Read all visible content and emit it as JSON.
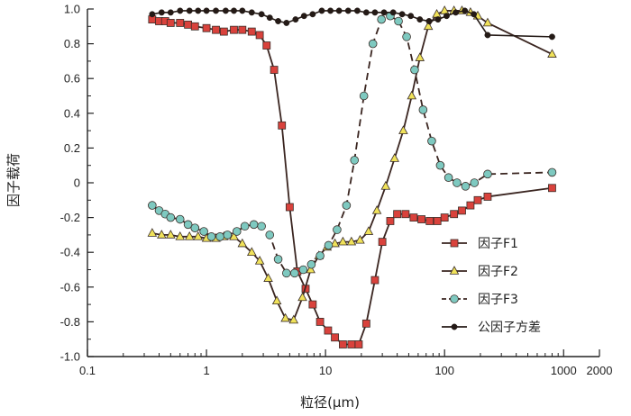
{
  "chart_data": {
    "type": "line",
    "title": "",
    "xlabel": "粒径(μm)",
    "ylabel": "因子载荷",
    "xscale": "log",
    "xlim": [
      0.1,
      2000
    ],
    "ylim": [
      -1.0,
      1.0
    ],
    "x_ticks": [
      0.1,
      1,
      10,
      100,
      1000,
      2000
    ],
    "x_tick_labels": [
      "0.1",
      "1",
      "10",
      "100",
      "1000",
      "2000"
    ],
    "y_ticks": [
      1.0,
      0.8,
      0.6,
      0.4,
      0.2,
      0,
      -0.2,
      -0.4,
      -0.6,
      -0.8,
      -1.0
    ],
    "y_tick_labels": [
      "1.0",
      "0.8",
      "0.6",
      "0.4",
      "0.2",
      "0",
      "-0.2",
      "-0.4",
      "-0.6",
      "-0.8",
      "-1.0"
    ],
    "grid": false,
    "legend_position": "lower-right",
    "series": [
      {
        "name": "因子F1",
        "color": "#d9423c",
        "line_color": "#3a2520",
        "marker": "square",
        "line_style": "solid",
        "x": [
          0.35,
          0.4,
          0.45,
          0.5,
          0.6,
          0.7,
          0.8,
          1.0,
          1.2,
          1.4,
          1.7,
          2.0,
          2.4,
          2.8,
          3.2,
          3.7,
          4.3,
          5.0,
          5.8,
          6.8,
          7.8,
          9.0,
          10.5,
          12,
          14,
          16.5,
          19,
          22,
          26,
          30,
          35,
          40,
          47,
          55,
          64,
          75,
          87,
          100,
          120,
          140,
          165,
          190,
          230,
          800
        ],
        "values": [
          0.94,
          0.93,
          0.93,
          0.92,
          0.92,
          0.91,
          0.9,
          0.89,
          0.88,
          0.87,
          0.88,
          0.88,
          0.87,
          0.85,
          0.79,
          0.65,
          0.33,
          -0.14,
          -0.51,
          -0.61,
          -0.7,
          -0.8,
          -0.85,
          -0.89,
          -0.93,
          -0.93,
          -0.93,
          -0.81,
          -0.56,
          -0.34,
          -0.22,
          -0.18,
          -0.18,
          -0.2,
          -0.21,
          -0.22,
          -0.22,
          -0.2,
          -0.18,
          -0.16,
          -0.13,
          -0.1,
          -0.08,
          -0.03
        ]
      },
      {
        "name": "因子F2",
        "color": "#f0e25a",
        "line_color": "#3a2520",
        "marker": "triangle",
        "line_style": "solid",
        "x": [
          0.35,
          0.42,
          0.5,
          0.6,
          0.72,
          0.85,
          1.0,
          1.2,
          1.4,
          1.7,
          2.0,
          2.4,
          2.8,
          3.3,
          3.9,
          4.6,
          5.4,
          6.4,
          7.5,
          8.8,
          10.3,
          12,
          14,
          16.5,
          19.5,
          23,
          27,
          32,
          38,
          45,
          53,
          62,
          73,
          86,
          100,
          120,
          140,
          165,
          190,
          230,
          800
        ],
        "values": [
          -0.29,
          -0.3,
          -0.3,
          -0.31,
          -0.31,
          -0.31,
          -0.32,
          -0.32,
          -0.31,
          -0.31,
          -0.35,
          -0.4,
          -0.45,
          -0.55,
          -0.68,
          -0.78,
          -0.79,
          -0.66,
          -0.5,
          -0.42,
          -0.37,
          -0.35,
          -0.34,
          -0.34,
          -0.33,
          -0.28,
          -0.16,
          -0.02,
          0.14,
          0.3,
          0.5,
          0.72,
          0.9,
          0.97,
          0.99,
          0.99,
          0.99,
          0.98,
          0.96,
          0.92,
          0.74
        ]
      },
      {
        "name": "因子F3",
        "color": "#7ec9c0",
        "line_color": "#3a2520",
        "marker": "circle",
        "line_style": "dashed",
        "x": [
          0.35,
          0.4,
          0.45,
          0.5,
          0.6,
          0.7,
          0.8,
          0.95,
          1.1,
          1.3,
          1.5,
          1.8,
          2.1,
          2.5,
          2.9,
          3.4,
          4.0,
          4.7,
          5.5,
          6.5,
          7.6,
          9.0,
          10.6,
          12.5,
          15,
          17.5,
          21,
          25,
          29.5,
          35,
          41,
          48,
          56,
          66,
          78,
          92,
          108,
          127,
          150,
          178,
          230,
          800
        ],
        "values": [
          -0.13,
          -0.16,
          -0.18,
          -0.2,
          -0.21,
          -0.24,
          -0.26,
          -0.28,
          -0.31,
          -0.31,
          -0.3,
          -0.28,
          -0.25,
          -0.24,
          -0.25,
          -0.3,
          -0.44,
          -0.52,
          -0.52,
          -0.5,
          -0.47,
          -0.42,
          -0.36,
          -0.27,
          -0.13,
          0.13,
          0.5,
          0.8,
          0.94,
          0.96,
          0.93,
          0.84,
          0.65,
          0.42,
          0.24,
          0.1,
          0.03,
          0.0,
          -0.02,
          0.0,
          0.05,
          0.06
        ]
      },
      {
        "name": "公因子方差",
        "color": "#241a16",
        "line_color": "#241a16",
        "marker": "dot",
        "line_style": "solid",
        "x": [
          0.35,
          0.42,
          0.5,
          0.6,
          0.72,
          0.85,
          1.0,
          1.2,
          1.45,
          1.7,
          2.0,
          2.4,
          2.9,
          3.4,
          4.0,
          4.7,
          5.6,
          6.6,
          7.8,
          9.3,
          11,
          13,
          15.5,
          18.5,
          22,
          26,
          31,
          37,
          44,
          52,
          62,
          74,
          88,
          104,
          124,
          148,
          176,
          230,
          800
        ],
        "values": [
          0.97,
          0.98,
          0.98,
          0.99,
          0.99,
          0.99,
          0.99,
          0.99,
          0.99,
          0.99,
          0.99,
          0.98,
          0.97,
          0.95,
          0.93,
          0.92,
          0.94,
          0.96,
          0.97,
          0.99,
          0.99,
          0.99,
          0.99,
          0.99,
          0.98,
          0.98,
          0.98,
          0.98,
          0.97,
          0.96,
          0.94,
          0.93,
          0.94,
          0.96,
          0.98,
          0.99,
          0.97,
          0.85,
          0.84
        ]
      }
    ]
  }
}
